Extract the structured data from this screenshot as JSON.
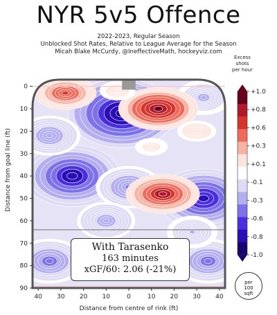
{
  "header": {
    "title": "NYR 5v5 Offence",
    "subtitle_lines": [
      "2022-2023, Regular Season",
      "Unblocked Shot Rates, Relative to League Average for the Season",
      "Micah Blake McCurdy, @IneffectiveMath, hockeyviz.com"
    ]
  },
  "annotation": {
    "line1": "With Tarasenko",
    "line2": "163 minutes",
    "line3": "xGF/60: 2.06 (-21%)"
  },
  "scale_badge": {
    "lines": [
      "per",
      "100",
      "sqft"
    ]
  },
  "chart_data": {
    "type": "heatmap",
    "xlabel": "Distance from centre of rink (ft)",
    "ylabel": "Distance from goal line (ft)",
    "x_ticks": [
      40,
      30,
      20,
      10,
      0,
      10,
      20,
      30,
      40
    ],
    "y_ticks": [
      0,
      10,
      20,
      30,
      40,
      50,
      60,
      70,
      80,
      90
    ],
    "xlim": [
      -42.5,
      42.5
    ],
    "ylim": [
      -3,
      90
    ],
    "colorbar": {
      "title_lines": [
        "Excess",
        "shots",
        "per hour"
      ],
      "ticks": [
        "+1.0",
        "+0.8",
        "+0.6",
        "+0.3",
        "+0.1",
        "-0.1",
        "-0.3",
        "-0.6",
        "-0.8",
        "-1.0"
      ],
      "colors": [
        "#67001f",
        "#b2182b",
        "#d6352e",
        "#ef6a5a",
        "#f7b3a3",
        "#fde4de",
        "#ffffff",
        "#dedbf5",
        "#b3aef0",
        "#7e72ea",
        "#4a2fe0",
        "#2a0fb8",
        "#1a0570"
      ]
    },
    "hotspots": [
      {
        "x": -28,
        "y": 3,
        "value": 0.65
      },
      {
        "x": 13,
        "y": 10,
        "value": 0.95
      },
      {
        "x": 15,
        "y": 48,
        "value": 0.85
      },
      {
        "x": 30,
        "y": 20,
        "value": 0.25
      },
      {
        "x": -5,
        "y": 2,
        "value": 0.2
      },
      {
        "x": 10,
        "y": 27,
        "value": 0.15
      }
    ],
    "coldspots": [
      {
        "x": -3,
        "y": 12,
        "value": -1.0
      },
      {
        "x": -25,
        "y": 40,
        "value": -0.85
      },
      {
        "x": 33,
        "y": 50,
        "value": -0.8
      },
      {
        "x": -35,
        "y": 22,
        "value": -0.4
      },
      {
        "x": 33,
        "y": 5,
        "value": -0.3
      },
      {
        "x": 0,
        "y": 45,
        "value": -0.45
      },
      {
        "x": -35,
        "y": 78,
        "value": -0.5
      },
      {
        "x": 35,
        "y": 78,
        "value": -0.5
      },
      {
        "x": 28,
        "y": 65,
        "value": -0.25
      },
      {
        "x": -10,
        "y": 60,
        "value": -0.35
      }
    ],
    "colors": {
      "rink": "#555555",
      "net": "#999999",
      "zero_band": "#ffffff",
      "faint_lines": "#f4cccc"
    }
  }
}
